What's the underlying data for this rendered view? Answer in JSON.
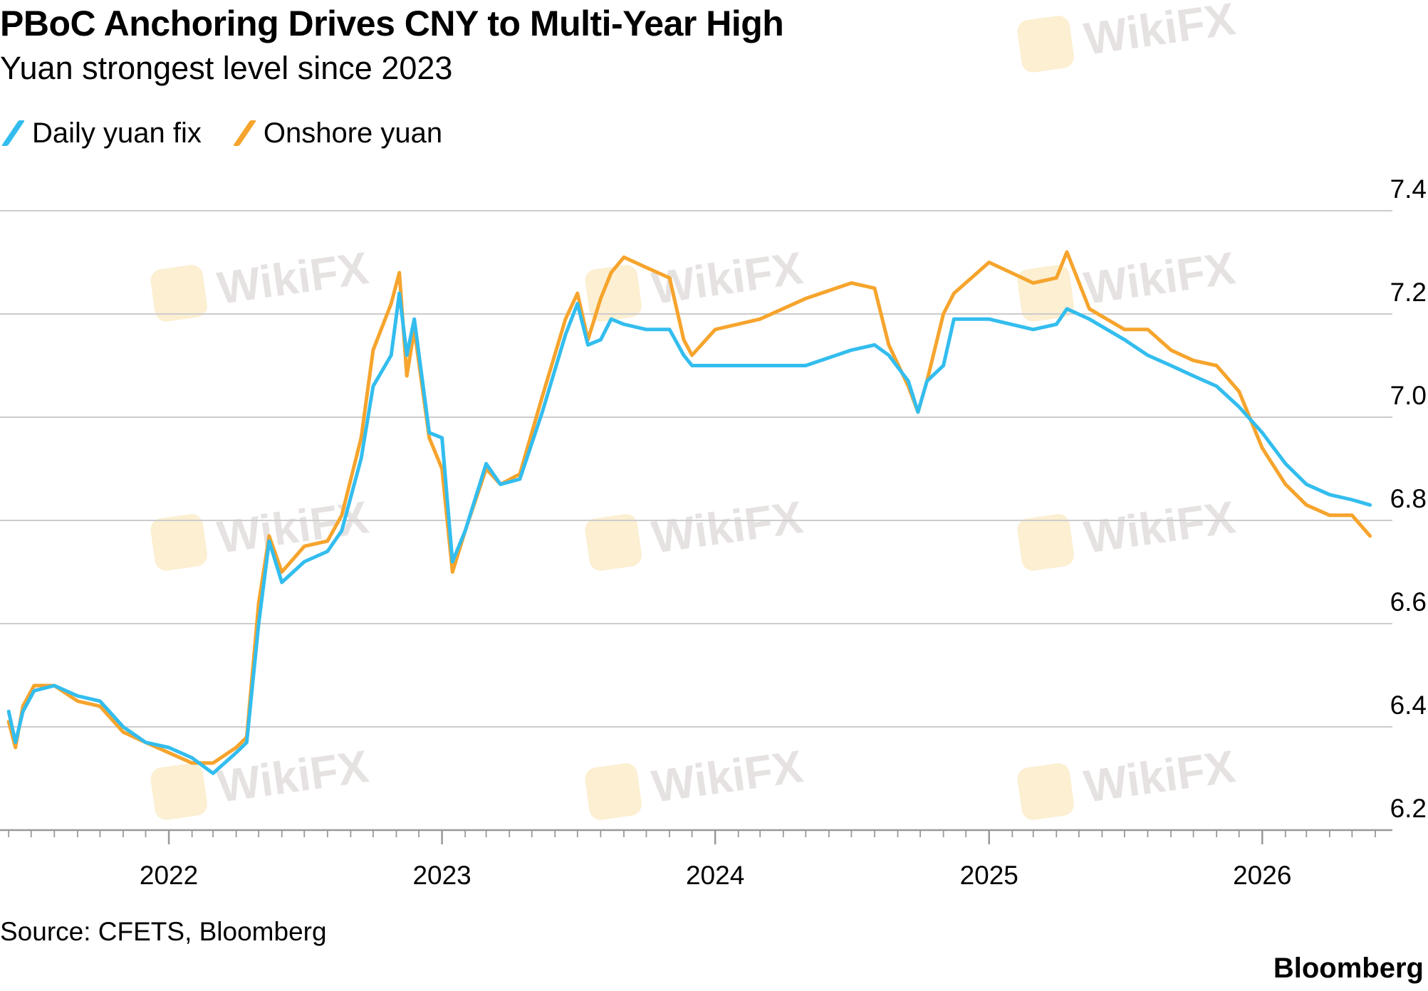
{
  "colors": {
    "fix": "#33bdee",
    "onshore": "#f6a42d",
    "grid": "#cccccc",
    "axis": "#999999",
    "watermark_text": "#e6e2e2",
    "watermark_logo": "#fcefd2"
  },
  "watermark": {
    "text": "WikiFX",
    "icon": "wikifx-logo-icon"
  },
  "footer": {
    "source": "Source: CFETS, Bloomberg",
    "brand": "Bloomberg"
  },
  "chart_data": {
    "type": "line",
    "title": "PBoC Anchoring Drives CNY to Multi-Year High",
    "subtitle": "Yuan strongest level since 2023",
    "xlabel": "",
    "ylabel": "",
    "x_ticks": [
      "2022",
      "2023",
      "2024",
      "2025",
      "2026"
    ],
    "y_ticks": [
      "6.2",
      "6.4",
      "6.6",
      "6.8",
      "7.0",
      "7.2",
      "7.4"
    ],
    "xlim": [
      "2021-05-28",
      "2026-06-02"
    ],
    "ylim": [
      6.2,
      7.4
    ],
    "grid": true,
    "legend": "top-left",
    "series": [
      {
        "name": "Daily yuan fix",
        "color": "#33bdee",
        "points": [
          [
            "2021-06-01",
            6.43
          ],
          [
            "2021-06-10",
            6.37
          ],
          [
            "2021-06-20",
            6.43
          ],
          [
            "2021-07-05",
            6.47
          ],
          [
            "2021-08-01",
            6.48
          ],
          [
            "2021-09-01",
            6.46
          ],
          [
            "2021-10-01",
            6.45
          ],
          [
            "2021-11-01",
            6.4
          ],
          [
            "2021-12-01",
            6.37
          ],
          [
            "2022-01-01",
            6.36
          ],
          [
            "2022-02-01",
            6.34
          ],
          [
            "2022-03-01",
            6.31
          ],
          [
            "2022-04-01",
            6.35
          ],
          [
            "2022-04-15",
            6.37
          ],
          [
            "2022-05-01",
            6.6
          ],
          [
            "2022-05-15",
            6.76
          ],
          [
            "2022-06-01",
            6.68
          ],
          [
            "2022-07-01",
            6.72
          ],
          [
            "2022-08-01",
            6.74
          ],
          [
            "2022-08-20",
            6.78
          ],
          [
            "2022-09-15",
            6.92
          ],
          [
            "2022-10-01",
            7.06
          ],
          [
            "2022-10-25",
            7.12
          ],
          [
            "2022-11-05",
            7.24
          ],
          [
            "2022-11-15",
            7.12
          ],
          [
            "2022-11-25",
            7.19
          ],
          [
            "2022-12-15",
            6.97
          ],
          [
            "2023-01-01",
            6.96
          ],
          [
            "2023-01-15",
            6.72
          ],
          [
            "2023-02-01",
            6.78
          ],
          [
            "2023-03-01",
            6.91
          ],
          [
            "2023-03-20",
            6.87
          ],
          [
            "2023-04-15",
            6.88
          ],
          [
            "2023-05-15",
            7.01
          ],
          [
            "2023-06-15",
            7.16
          ],
          [
            "2023-07-01",
            7.22
          ],
          [
            "2023-07-15",
            7.14
          ],
          [
            "2023-08-01",
            7.15
          ],
          [
            "2023-08-15",
            7.19
          ],
          [
            "2023-09-01",
            7.18
          ],
          [
            "2023-10-01",
            7.17
          ],
          [
            "2023-11-01",
            7.17
          ],
          [
            "2023-11-20",
            7.12
          ],
          [
            "2023-12-01",
            7.1
          ],
          [
            "2024-01-01",
            7.1
          ],
          [
            "2024-03-01",
            7.1
          ],
          [
            "2024-05-01",
            7.1
          ],
          [
            "2024-07-01",
            7.13
          ],
          [
            "2024-08-01",
            7.14
          ],
          [
            "2024-08-20",
            7.12
          ],
          [
            "2024-09-15",
            7.07
          ],
          [
            "2024-09-28",
            7.01
          ],
          [
            "2024-10-10",
            7.07
          ],
          [
            "2024-11-01",
            7.1
          ],
          [
            "2024-11-15",
            7.19
          ],
          [
            "2025-01-01",
            7.19
          ],
          [
            "2025-03-01",
            7.17
          ],
          [
            "2025-04-01",
            7.18
          ],
          [
            "2025-04-15",
            7.21
          ],
          [
            "2025-05-15",
            7.19
          ],
          [
            "2025-07-01",
            7.15
          ],
          [
            "2025-08-01",
            7.12
          ],
          [
            "2025-09-01",
            7.1
          ],
          [
            "2025-10-01",
            7.08
          ],
          [
            "2025-11-01",
            7.06
          ],
          [
            "2025-12-01",
            7.02
          ],
          [
            "2026-01-01",
            6.97
          ],
          [
            "2026-02-01",
            6.91
          ],
          [
            "2026-03-01",
            6.87
          ],
          [
            "2026-04-01",
            6.85
          ],
          [
            "2026-05-01",
            6.84
          ],
          [
            "2026-05-25",
            6.83
          ]
        ]
      },
      {
        "name": "Onshore yuan",
        "color": "#f6a42d",
        "points": [
          [
            "2021-06-01",
            6.41
          ],
          [
            "2021-06-10",
            6.36
          ],
          [
            "2021-06-20",
            6.44
          ],
          [
            "2021-07-05",
            6.48
          ],
          [
            "2021-08-01",
            6.48
          ],
          [
            "2021-09-01",
            6.45
          ],
          [
            "2021-10-01",
            6.44
          ],
          [
            "2021-11-01",
            6.39
          ],
          [
            "2021-12-01",
            6.37
          ],
          [
            "2022-01-01",
            6.35
          ],
          [
            "2022-02-01",
            6.33
          ],
          [
            "2022-03-01",
            6.33
          ],
          [
            "2022-04-01",
            6.36
          ],
          [
            "2022-04-15",
            6.38
          ],
          [
            "2022-05-01",
            6.64
          ],
          [
            "2022-05-15",
            6.77
          ],
          [
            "2022-06-01",
            6.7
          ],
          [
            "2022-07-01",
            6.75
          ],
          [
            "2022-08-01",
            6.76
          ],
          [
            "2022-08-20",
            6.81
          ],
          [
            "2022-09-15",
            6.96
          ],
          [
            "2022-10-01",
            7.13
          ],
          [
            "2022-10-25",
            7.22
          ],
          [
            "2022-11-05",
            7.28
          ],
          [
            "2022-11-15",
            7.08
          ],
          [
            "2022-11-25",
            7.17
          ],
          [
            "2022-12-15",
            6.96
          ],
          [
            "2023-01-01",
            6.9
          ],
          [
            "2023-01-15",
            6.7
          ],
          [
            "2023-02-01",
            6.78
          ],
          [
            "2023-03-01",
            6.9
          ],
          [
            "2023-03-20",
            6.87
          ],
          [
            "2023-04-15",
            6.89
          ],
          [
            "2023-05-15",
            7.04
          ],
          [
            "2023-06-15",
            7.19
          ],
          [
            "2023-07-01",
            7.24
          ],
          [
            "2023-07-15",
            7.15
          ],
          [
            "2023-08-01",
            7.23
          ],
          [
            "2023-08-15",
            7.28
          ],
          [
            "2023-09-01",
            7.31
          ],
          [
            "2023-10-01",
            7.29
          ],
          [
            "2023-11-01",
            7.27
          ],
          [
            "2023-11-20",
            7.15
          ],
          [
            "2023-12-01",
            7.12
          ],
          [
            "2024-01-01",
            7.17
          ],
          [
            "2024-03-01",
            7.19
          ],
          [
            "2024-05-01",
            7.23
          ],
          [
            "2024-07-01",
            7.26
          ],
          [
            "2024-08-01",
            7.25
          ],
          [
            "2024-08-20",
            7.14
          ],
          [
            "2024-09-15",
            7.06
          ],
          [
            "2024-09-28",
            7.01
          ],
          [
            "2024-10-10",
            7.07
          ],
          [
            "2024-11-01",
            7.2
          ],
          [
            "2024-11-15",
            7.24
          ],
          [
            "2025-01-01",
            7.3
          ],
          [
            "2025-03-01",
            7.26
          ],
          [
            "2025-04-01",
            7.27
          ],
          [
            "2025-04-15",
            7.32
          ],
          [
            "2025-05-15",
            7.21
          ],
          [
            "2025-07-01",
            7.17
          ],
          [
            "2025-08-01",
            7.17
          ],
          [
            "2025-09-01",
            7.13
          ],
          [
            "2025-10-01",
            7.11
          ],
          [
            "2025-11-01",
            7.1
          ],
          [
            "2025-12-01",
            7.05
          ],
          [
            "2026-01-01",
            6.94
          ],
          [
            "2026-02-01",
            6.87
          ],
          [
            "2026-03-01",
            6.83
          ],
          [
            "2026-04-01",
            6.81
          ],
          [
            "2026-05-01",
            6.81
          ],
          [
            "2026-05-25",
            6.77
          ]
        ]
      }
    ]
  }
}
